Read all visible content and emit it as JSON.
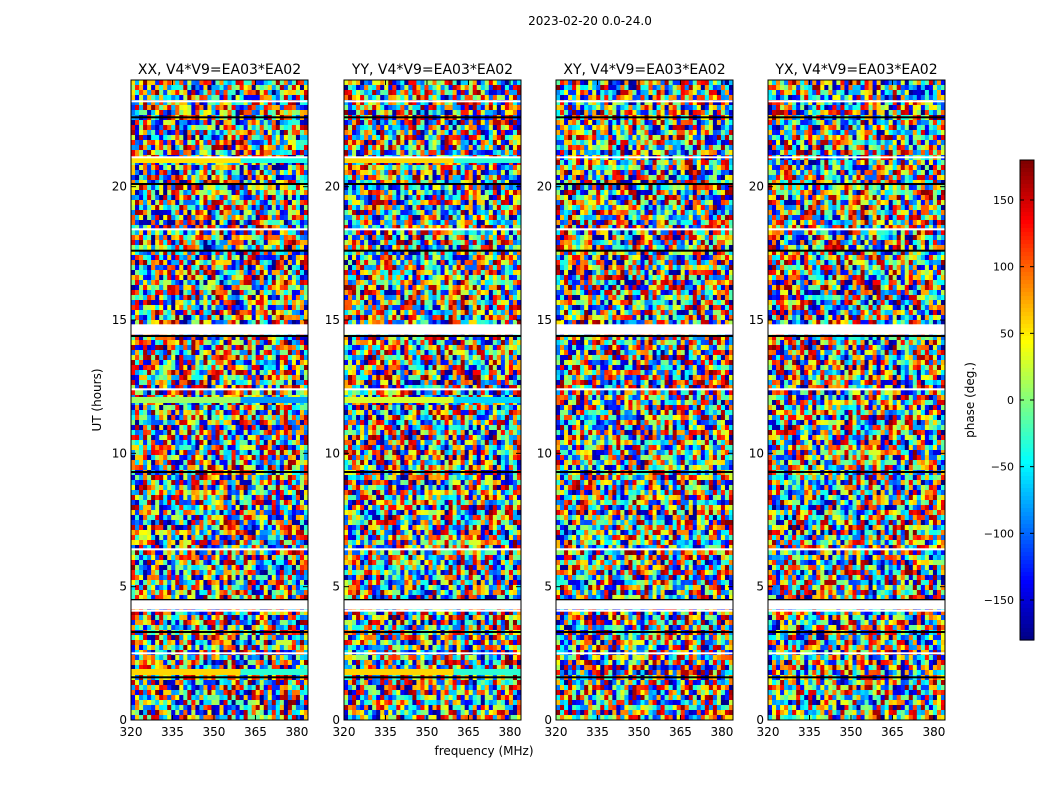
{
  "figure": {
    "suptitle": "2023-02-20 0.0-24.0"
  },
  "chart_data": [
    {
      "type": "heatmap",
      "title": "XX, V4*V9=EA03*EA02",
      "xlabel": "",
      "ylabel": "UT (hours)",
      "xlim": [
        320,
        384
      ],
      "ylim": [
        0,
        24
      ],
      "x_ticks": [
        "320",
        "335",
        "350",
        "365",
        "380"
      ],
      "y_ticks": [
        "0",
        "5",
        "10",
        "15",
        "20"
      ],
      "value": "phase (deg.), pseudo-random fringe pattern",
      "flagged_rows_ut": [
        1.6,
        2.5,
        3.3,
        4.1,
        4.5,
        6.4,
        9.3,
        12.4,
        14.4,
        14.8,
        17.6,
        18.4,
        20.1,
        21.1,
        22.6,
        23.2
      ],
      "notable_bands": [
        {
          "ut": 1.8,
          "phase_deg": 60
        },
        {
          "ut": 12.0,
          "phase_deg": 10
        },
        {
          "ut": 21.0,
          "phase_deg": 55
        }
      ]
    },
    {
      "type": "heatmap",
      "title": "YY, V4*V9=EA03*EA02",
      "xlabel": "frequency (MHz)",
      "ylabel": "",
      "xlim": [
        320,
        384
      ],
      "ylim": [
        0,
        24
      ],
      "x_ticks": [
        "320",
        "335",
        "350",
        "365",
        "380"
      ],
      "y_ticks": [
        "0",
        "5",
        "10",
        "15",
        "20"
      ],
      "value": "phase (deg.), pseudo-random fringe pattern",
      "flagged_rows_ut": [
        1.6,
        2.5,
        3.3,
        4.1,
        4.5,
        6.4,
        9.3,
        12.4,
        14.4,
        14.8,
        17.6,
        18.4,
        20.1,
        21.1,
        22.6,
        23.2
      ],
      "notable_bands": [
        {
          "ut": 1.8,
          "phase_deg": 60
        },
        {
          "ut": 12.0,
          "phase_deg": 30
        },
        {
          "ut": 21.0,
          "phase_deg": 60
        }
      ]
    },
    {
      "type": "heatmap",
      "title": "XY, V4*V9=EA03*EA02",
      "xlabel": "",
      "ylabel": "",
      "xlim": [
        320,
        384
      ],
      "ylim": [
        0,
        24
      ],
      "x_ticks": [
        "320",
        "335",
        "350",
        "365",
        "380"
      ],
      "y_ticks": [
        "0",
        "5",
        "10",
        "15",
        "20"
      ],
      "value": "phase (deg.), pseudo-random",
      "flagged_rows_ut": [
        1.6,
        2.5,
        3.3,
        4.1,
        4.5,
        6.4,
        9.3,
        12.4,
        14.4,
        14.8,
        17.6,
        18.4,
        20.1,
        21.1,
        22.6,
        23.2
      ],
      "notable_bands": []
    },
    {
      "type": "heatmap",
      "title": "YX, V4*V9=EA03*EA02",
      "xlabel": "",
      "ylabel": "",
      "xlim": [
        320,
        384
      ],
      "ylim": [
        0,
        24
      ],
      "x_ticks": [
        "320",
        "335",
        "350",
        "365",
        "380"
      ],
      "y_ticks": [
        "0",
        "5",
        "10",
        "15",
        "20"
      ],
      "value": "phase (deg.), pseudo-random",
      "flagged_rows_ut": [
        1.6,
        2.5,
        3.3,
        4.1,
        4.5,
        6.4,
        9.3,
        12.4,
        14.4,
        14.8,
        17.6,
        18.4,
        20.1,
        21.1,
        22.6,
        23.2
      ],
      "notable_bands": []
    }
  ],
  "colorbar": {
    "label": "phase (deg.)",
    "range": [
      -180,
      180
    ],
    "ticks": [
      "150",
      "100",
      "50",
      "0",
      "−50",
      "−100",
      "−150"
    ],
    "tick_values": [
      150,
      100,
      50,
      0,
      -50,
      -100,
      -150
    ],
    "colormap": "jet"
  }
}
